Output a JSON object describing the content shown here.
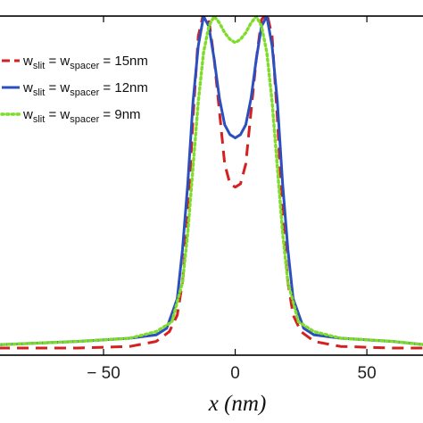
{
  "chart_data": {
    "type": "line",
    "xlabel": "x (nm)",
    "ylabel": "",
    "title": "",
    "xlim": [
      -90,
      72
    ],
    "ylim": [
      0,
      1
    ],
    "x_ticks": [
      {
        "value": -50,
        "label": "− 50"
      },
      {
        "value": 0,
        "label": "0"
      },
      {
        "value": 50,
        "label": "50"
      }
    ],
    "legend_position": "top-left",
    "series": [
      {
        "name": "w_slit = w_spacer = 15nm",
        "legend": {
          "main": "w",
          "sub1": "slit",
          "mid": " = w",
          "sub2": "spacer",
          "end": " = 15nm"
        },
        "color": "#d42020",
        "style": "dashed",
        "x": [
          -90,
          -60,
          -40,
          -30,
          -25,
          -22,
          -20,
          -18,
          -16,
          -14,
          -12,
          -10,
          -8,
          -6,
          -4,
          -2,
          0,
          2,
          4,
          6,
          8,
          10,
          12,
          14,
          16,
          18,
          20,
          22,
          25,
          30,
          40,
          60,
          72
        ],
        "y": [
          0,
          0,
          0.005,
          0.02,
          0.05,
          0.1,
          0.2,
          0.4,
          0.7,
          0.95,
          1.02,
          1.0,
          0.88,
          0.72,
          0.56,
          0.5,
          0.49,
          0.5,
          0.56,
          0.72,
          0.88,
          1.0,
          1.02,
          0.95,
          0.7,
          0.4,
          0.2,
          0.1,
          0.05,
          0.02,
          0.005,
          0,
          0
        ]
      },
      {
        "name": "w_slit = w_spacer = 12nm",
        "legend": {
          "main": "w",
          "sub1": "slit",
          "mid": " = w",
          "sub2": "spacer",
          "end": " = 12nm"
        },
        "color": "#2b4fbf",
        "style": "solid",
        "x": [
          -90,
          -60,
          -40,
          -30,
          -26,
          -22,
          -20,
          -18,
          -16,
          -14,
          -12,
          -10,
          -8,
          -6,
          -4,
          -2,
          0,
          2,
          4,
          6,
          8,
          10,
          12,
          14,
          16,
          18,
          20,
          22,
          26,
          30,
          40,
          60,
          72
        ],
        "y": [
          0.01,
          0.02,
          0.03,
          0.04,
          0.06,
          0.15,
          0.3,
          0.5,
          0.75,
          0.92,
          1.01,
          0.98,
          0.88,
          0.76,
          0.68,
          0.65,
          0.64,
          0.65,
          0.68,
          0.76,
          0.88,
          0.98,
          1.01,
          0.92,
          0.75,
          0.5,
          0.3,
          0.15,
          0.06,
          0.04,
          0.03,
          0.02,
          0.01
        ]
      },
      {
        "name": "w_slit = w_spacer = 9nm",
        "legend": {
          "main": "w",
          "sub1": "slit",
          "mid": " = w",
          "sub2": "spacer",
          "end": " = 9nm"
        },
        "color": "#7fdc2a",
        "style": "dotted",
        "x": [
          -90,
          -60,
          -40,
          -30,
          -24,
          -20,
          -18,
          -16,
          -14,
          -12,
          -10,
          -8,
          -6,
          -4,
          -2,
          0,
          2,
          4,
          6,
          8,
          10,
          12,
          14,
          16,
          18,
          20,
          24,
          30,
          40,
          60,
          72
        ],
        "y": [
          0.01,
          0.02,
          0.03,
          0.05,
          0.08,
          0.2,
          0.35,
          0.55,
          0.75,
          0.9,
          0.98,
          1.01,
          0.99,
          0.96,
          0.94,
          0.93,
          0.94,
          0.96,
          0.99,
          1.01,
          0.98,
          0.9,
          0.75,
          0.55,
          0.35,
          0.2,
          0.08,
          0.05,
          0.03,
          0.02,
          0.01
        ]
      }
    ]
  }
}
